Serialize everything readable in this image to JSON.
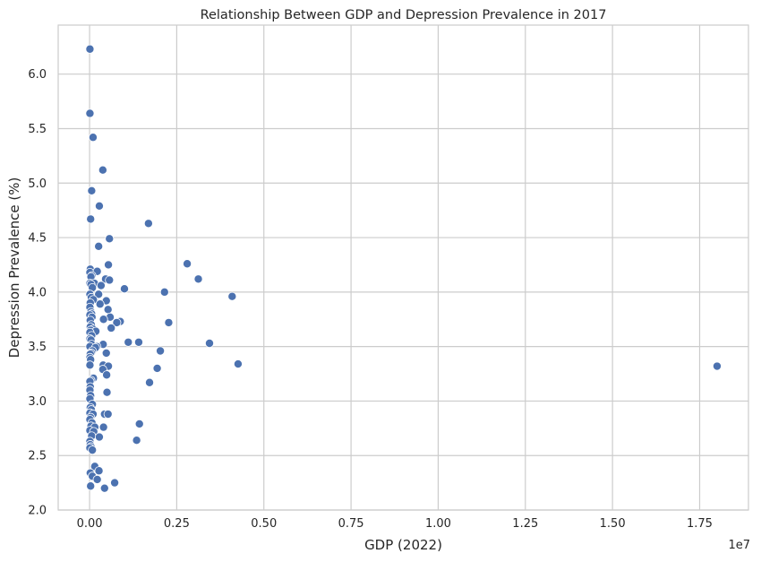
{
  "chart_data": {
    "type": "scatter",
    "title": "Relationship Between GDP and Depression Prevalence in 2017",
    "xlabel": "GDP (2022)",
    "ylabel": "Depression Prevalence (%)",
    "x_offset_label": "1e7",
    "xlim": [
      -900000,
      18900000
    ],
    "ylim": [
      2.0,
      6.45
    ],
    "x_ticks": [
      0,
      2500000,
      5000000,
      7500000,
      10000000,
      12500000,
      15000000,
      17500000
    ],
    "x_tick_labels": [
      "0.00",
      "0.25",
      "0.50",
      "0.75",
      "1.00",
      "1.25",
      "1.50",
      "1.75"
    ],
    "y_ticks": [
      2.0,
      2.5,
      3.0,
      3.5,
      4.0,
      4.5,
      5.0,
      5.5,
      6.0
    ],
    "y_tick_labels": [
      "2.0",
      "2.5",
      "3.0",
      "3.5",
      "4.0",
      "4.5",
      "5.0",
      "5.5",
      "6.0"
    ],
    "grid": true,
    "legend": "none",
    "colors": {
      "marker": "#4c72b0",
      "grid": "#cccccc",
      "text": "#262626"
    },
    "points": [
      [
        10000,
        6.23
      ],
      [
        10000,
        5.64
      ],
      [
        100000,
        5.42
      ],
      [
        380000,
        5.12
      ],
      [
        60000,
        4.93
      ],
      [
        280000,
        4.79
      ],
      [
        30000,
        4.67
      ],
      [
        1690000,
        4.63
      ],
      [
        570000,
        4.49
      ],
      [
        260000,
        4.42
      ],
      [
        2800000,
        4.26
      ],
      [
        540000,
        4.25
      ],
      [
        20000,
        4.21
      ],
      [
        10000,
        4.18
      ],
      [
        220000,
        4.19
      ],
      [
        70000,
        4.15
      ],
      [
        40000,
        4.14
      ],
      [
        3120000,
        4.12
      ],
      [
        460000,
        4.12
      ],
      [
        570000,
        4.11
      ],
      [
        10000,
        4.08
      ],
      [
        140000,
        4.08
      ],
      [
        40000,
        4.07
      ],
      [
        330000,
        4.06
      ],
      [
        80000,
        4.04
      ],
      [
        1000000,
        4.03
      ],
      [
        2150000,
        4.0
      ],
      [
        10000,
        3.98
      ],
      [
        260000,
        3.98
      ],
      [
        4090000,
        3.96
      ],
      [
        50000,
        3.95
      ],
      [
        110000,
        3.93
      ],
      [
        480000,
        3.92
      ],
      [
        20000,
        3.9
      ],
      [
        300000,
        3.89
      ],
      [
        10000,
        3.86
      ],
      [
        530000,
        3.84
      ],
      [
        40000,
        3.82
      ],
      [
        60000,
        3.8
      ],
      [
        10000,
        3.79
      ],
      [
        70000,
        3.77
      ],
      [
        590000,
        3.77
      ],
      [
        400000,
        3.75
      ],
      [
        20000,
        3.74
      ],
      [
        880000,
        3.73
      ],
      [
        780000,
        3.72
      ],
      [
        2270000,
        3.72
      ],
      [
        50000,
        3.7
      ],
      [
        20000,
        3.68
      ],
      [
        620000,
        3.67
      ],
      [
        100000,
        3.66
      ],
      [
        30000,
        3.65
      ],
      [
        180000,
        3.64
      ],
      [
        10000,
        3.63
      ],
      [
        60000,
        3.6
      ],
      [
        10000,
        3.57
      ],
      [
        40000,
        3.56
      ],
      [
        1110000,
        3.54
      ],
      [
        1410000,
        3.54
      ],
      [
        3440000,
        3.53
      ],
      [
        390000,
        3.52
      ],
      [
        60000,
        3.52
      ],
      [
        10000,
        3.5
      ],
      [
        210000,
        3.5
      ],
      [
        170000,
        3.49
      ],
      [
        2030000,
        3.46
      ],
      [
        80000,
        3.46
      ],
      [
        50000,
        3.44
      ],
      [
        480000,
        3.44
      ],
      [
        20000,
        3.43
      ],
      [
        10000,
        3.4
      ],
      [
        30000,
        3.38
      ],
      [
        4260000,
        3.34
      ],
      [
        10000,
        3.33
      ],
      [
        390000,
        3.33
      ],
      [
        540000,
        3.32
      ],
      [
        18000000,
        3.32
      ],
      [
        1940000,
        3.3
      ],
      [
        380000,
        3.29
      ],
      [
        490000,
        3.24
      ],
      [
        110000,
        3.21
      ],
      [
        40000,
        3.19
      ],
      [
        10000,
        3.18
      ],
      [
        1720000,
        3.17
      ],
      [
        20000,
        3.13
      ],
      [
        10000,
        3.1
      ],
      [
        500000,
        3.08
      ],
      [
        30000,
        3.05
      ],
      [
        10000,
        3.02
      ],
      [
        80000,
        2.97
      ],
      [
        20000,
        2.94
      ],
      [
        50000,
        2.92
      ],
      [
        10000,
        2.89
      ],
      [
        100000,
        2.88
      ],
      [
        430000,
        2.88
      ],
      [
        530000,
        2.88
      ],
      [
        30000,
        2.85
      ],
      [
        10000,
        2.83
      ],
      [
        70000,
        2.8
      ],
      [
        1430000,
        2.79
      ],
      [
        40000,
        2.77
      ],
      [
        150000,
        2.76
      ],
      [
        400000,
        2.76
      ],
      [
        10000,
        2.73
      ],
      [
        120000,
        2.72
      ],
      [
        60000,
        2.68
      ],
      [
        280000,
        2.67
      ],
      [
        1350000,
        2.64
      ],
      [
        10000,
        2.63
      ],
      [
        20000,
        2.6
      ],
      [
        40000,
        2.58
      ],
      [
        10000,
        2.57
      ],
      [
        80000,
        2.55
      ],
      [
        150000,
        2.4
      ],
      [
        270000,
        2.36
      ],
      [
        20000,
        2.34
      ],
      [
        80000,
        2.31
      ],
      [
        220000,
        2.28
      ],
      [
        720000,
        2.25
      ],
      [
        30000,
        2.22
      ],
      [
        430000,
        2.2
      ]
    ]
  }
}
